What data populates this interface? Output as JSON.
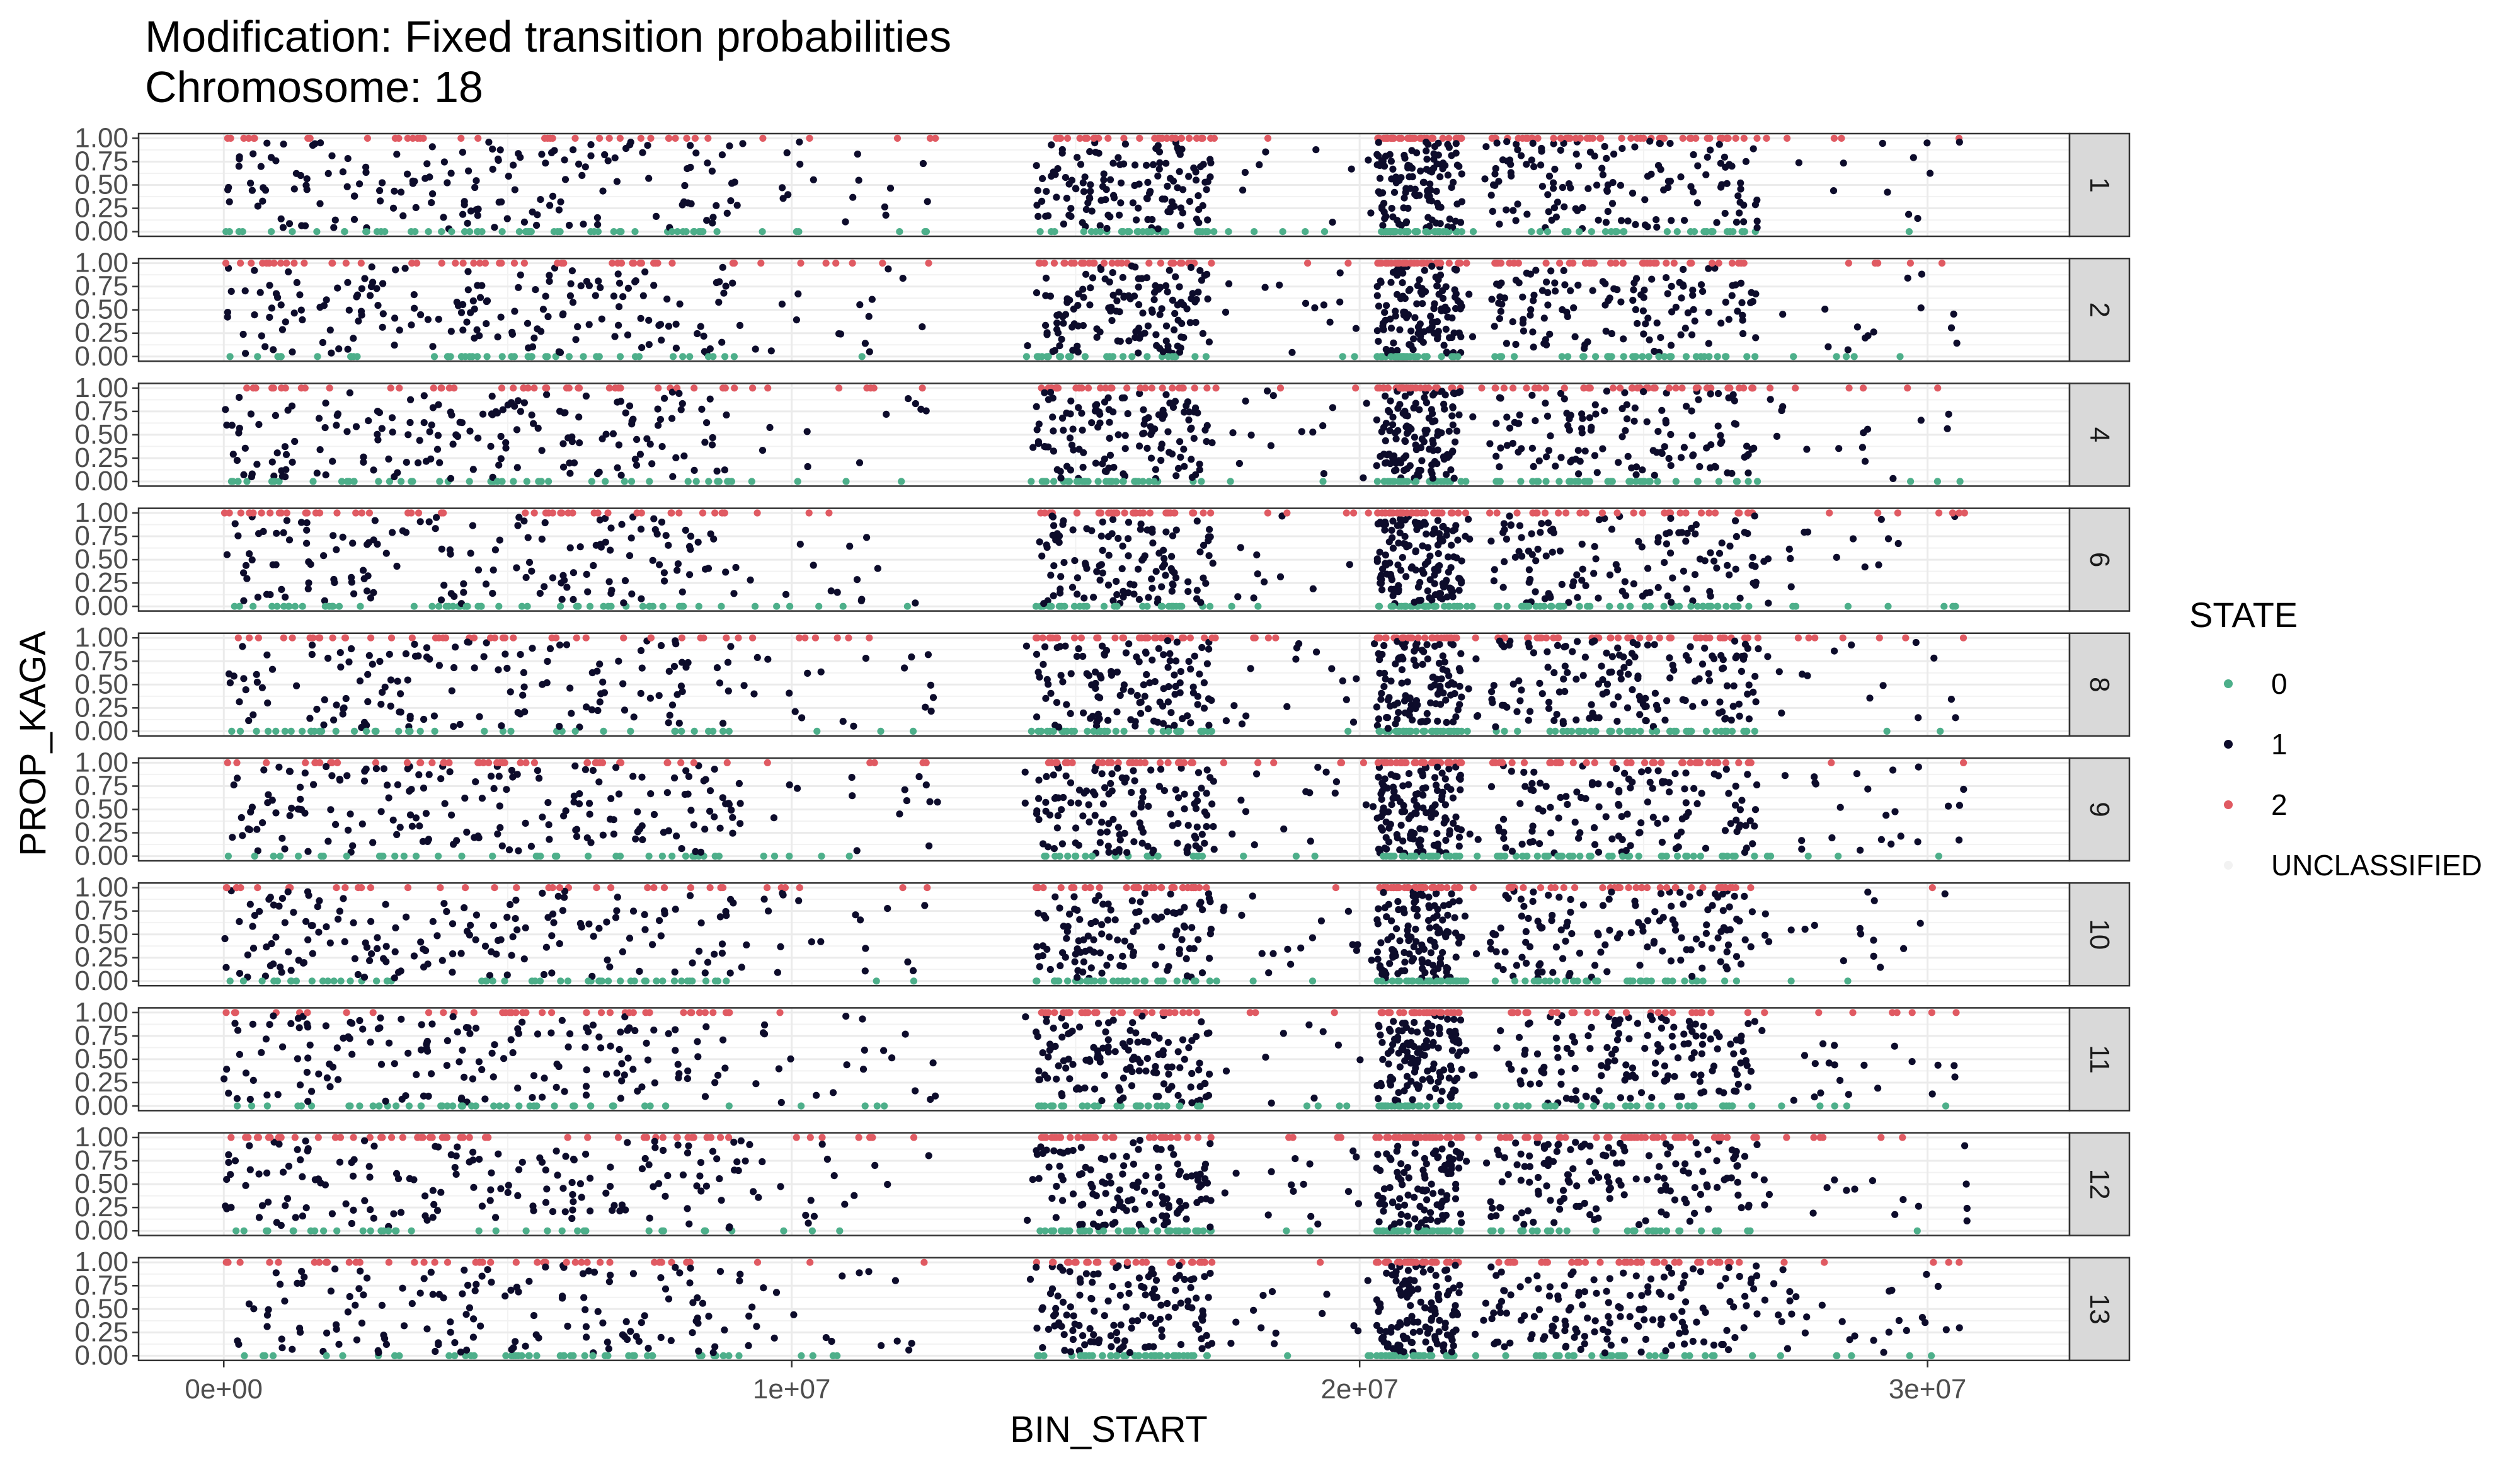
{
  "chart_data": {
    "type": "scatter",
    "title": "Modification:  Fixed transition probabilities",
    "subtitle": "Chromosome:  18",
    "xlabel": "BIN_START",
    "ylabel": "PROP_KAGA",
    "xlim": [
      -1500000,
      32500000
    ],
    "ylim": [
      -0.05,
      1.05
    ],
    "x_ticks": [
      0,
      10000000,
      20000000,
      30000000
    ],
    "x_tick_labels": [
      "0e+00",
      "1e+07",
      "2e+07",
      "3e+07"
    ],
    "y_ticks": [
      0,
      0.25,
      0.5,
      0.75,
      1
    ],
    "y_tick_labels": [
      "0.00",
      "0.25",
      "0.50",
      "0.75",
      "1.00"
    ],
    "grid": true,
    "theme": "bw",
    "facet_by": "sample",
    "facets": [
      "1",
      "2",
      "4",
      "6",
      "8",
      "9",
      "10",
      "11",
      "12",
      "13"
    ],
    "legend": {
      "title": "STATE",
      "position": "right",
      "entries": [
        {
          "label": "0",
          "color": "#4daf8a"
        },
        {
          "label": "1",
          "color": "#0d0c2b"
        },
        {
          "label": "2",
          "color": "#e05a62"
        },
        {
          "label": "UNCLASSIFIED",
          "color": "#f2f2f2"
        }
      ]
    },
    "series_rule": "state 0 points lie at PROP_KAGA = 0, state 2 points lie at PROP_KAGA = 1, state 1 points lie strictly between",
    "x_range_data": [
      0,
      30700000
    ],
    "dense_regions": [
      {
        "from": 0,
        "to": 9000000
      },
      {
        "from": 14300000,
        "to": 17400000
      },
      {
        "from": 20300000,
        "to": 21800000
      },
      {
        "from": 22300000,
        "to": 27000000
      }
    ],
    "gaps": [
      {
        "from": 12600000,
        "to": 14100000
      },
      {
        "from": 17500000,
        "to": 17600000
      }
    ],
    "points_per_panel_approx": 900
  }
}
